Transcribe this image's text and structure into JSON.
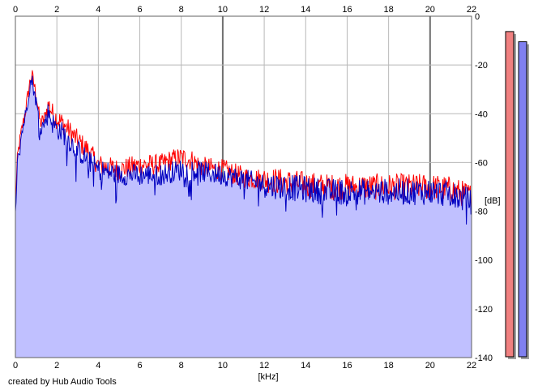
{
  "chart_data": {
    "type": "area",
    "xlabel": "[kHz]",
    "ylabel": "[dB]",
    "xlim": [
      0,
      22
    ],
    "ylim": [
      -140,
      0
    ],
    "x_ticks": [
      "0",
      "2",
      "4",
      "6",
      "8",
      "10",
      "12",
      "14",
      "16",
      "18",
      "20",
      "22"
    ],
    "y_ticks": [
      "0",
      "-20",
      "-40",
      "-60",
      "-80",
      "-100",
      "-120",
      "-140"
    ],
    "grid": true,
    "series": [
      {
        "color": "#ff0000",
        "x": [
          0,
          0.1,
          0.2,
          0.3,
          0.5,
          0.7,
          0.8,
          1.0,
          1.2,
          1.4,
          1.6,
          1.8,
          2.0,
          2.3,
          2.6,
          3.0,
          3.5,
          4.0,
          5.0,
          6.0,
          7.0,
          7.5,
          8.0,
          8.5,
          9.0,
          10.0,
          11.0,
          12.0,
          13.0,
          14.0,
          15.0,
          16.0,
          17.0,
          18.0,
          19.0,
          20.0,
          21.0,
          22.0
        ],
        "y": [
          -78,
          -58,
          -52,
          -47,
          -38,
          -27,
          -24,
          -32,
          -44,
          -42,
          -36,
          -40,
          -42,
          -44,
          -47,
          -51,
          -55,
          -61,
          -63,
          -61,
          -61,
          -59,
          -58,
          -59,
          -62,
          -63,
          -66,
          -67,
          -68,
          -69,
          -70,
          -70,
          -70,
          -70,
          -70,
          -70,
          -71,
          -74
        ]
      },
      {
        "color": "#0000c0",
        "x": [
          0,
          0.1,
          0.2,
          0.3,
          0.5,
          0.7,
          0.8,
          1.0,
          1.2,
          1.4,
          1.6,
          1.8,
          2.0,
          2.3,
          2.6,
          3.0,
          3.5,
          4.0,
          5.0,
          6.0,
          7.0,
          7.5,
          8.0,
          8.5,
          9.0,
          10.0,
          11.0,
          12.0,
          13.0,
          14.0,
          15.0,
          16.0,
          17.0,
          18.0,
          19.0,
          20.0,
          21.0,
          22.0
        ],
        "y": [
          -80,
          -60,
          -54,
          -48,
          -40,
          -28,
          -26,
          -35,
          -46,
          -44,
          -39,
          -44,
          -46,
          -48,
          -51,
          -55,
          -59,
          -63,
          -65,
          -65,
          -65,
          -64,
          -63,
          -63,
          -64,
          -65,
          -67,
          -69,
          -70,
          -71,
          -72,
          -72,
          -72,
          -72,
          -72,
          -72,
          -73,
          -76
        ]
      }
    ],
    "level_meters": [
      {
        "color": "#f08080",
        "level": 0.955
      },
      {
        "color": "#8080f0",
        "level": 0.925
      }
    ]
  },
  "footer": {
    "credit": "created by Hub Audio Tools"
  }
}
